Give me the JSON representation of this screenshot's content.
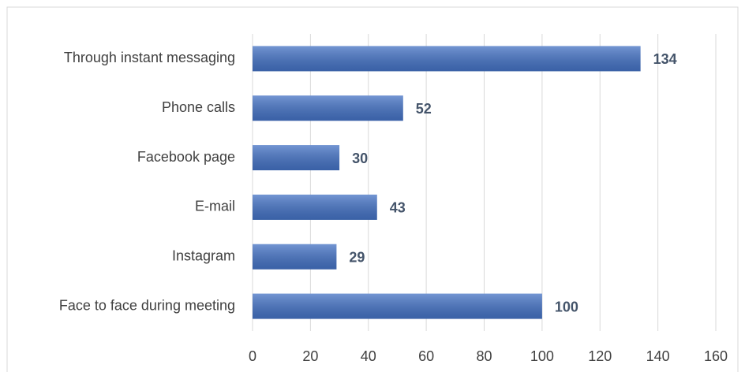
{
  "chart_data": {
    "type": "bar",
    "orientation": "horizontal",
    "categories": [
      "Through instant messaging",
      "Phone calls",
      "Facebook page",
      "E-mail",
      "Instagram",
      "Face to face during meeting"
    ],
    "values": [
      134,
      52,
      30,
      43,
      29,
      100
    ],
    "color": "#4472c4",
    "xlim": [
      0,
      160
    ],
    "xticks": [
      0,
      20,
      40,
      60,
      80,
      100,
      120,
      140,
      160
    ],
    "grid": true
  }
}
